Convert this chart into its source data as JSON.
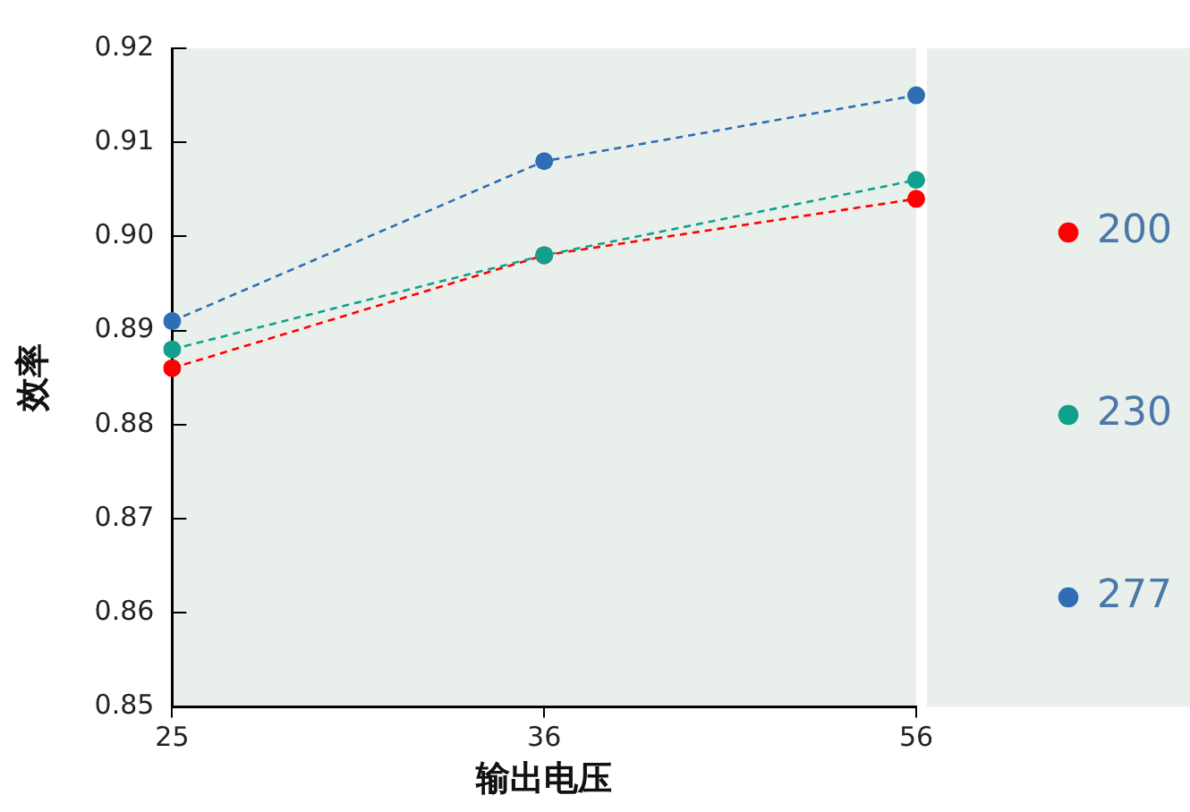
{
  "chart_data": {
    "type": "line",
    "xlabel": "输出电压",
    "ylabel": "效率",
    "categories": [
      "25",
      "36",
      "56"
    ],
    "series": [
      {
        "name": "200",
        "color": "#ff0000",
        "values": [
          0.886,
          0.898,
          0.904
        ]
      },
      {
        "name": "230",
        "color": "#12a08e",
        "values": [
          0.888,
          0.898,
          0.906
        ]
      },
      {
        "name": "277",
        "color": "#2f6db5",
        "values": [
          0.891,
          0.908,
          0.915
        ]
      }
    ],
    "ylim": [
      0.85,
      0.92
    ],
    "yticks": [
      {
        "value": 0.85,
        "label": "0.85"
      },
      {
        "value": 0.86,
        "label": "0.86"
      },
      {
        "value": 0.87,
        "label": "0.87"
      },
      {
        "value": 0.88,
        "label": "0.88"
      },
      {
        "value": 0.89,
        "label": "0.89"
      },
      {
        "value": 0.9,
        "label": "0.90"
      },
      {
        "value": 0.91,
        "label": "0.91"
      },
      {
        "value": 0.92,
        "label": "0.92"
      }
    ],
    "grid": false,
    "legend": "right",
    "marker": "circle",
    "line_style": "dashed"
  }
}
